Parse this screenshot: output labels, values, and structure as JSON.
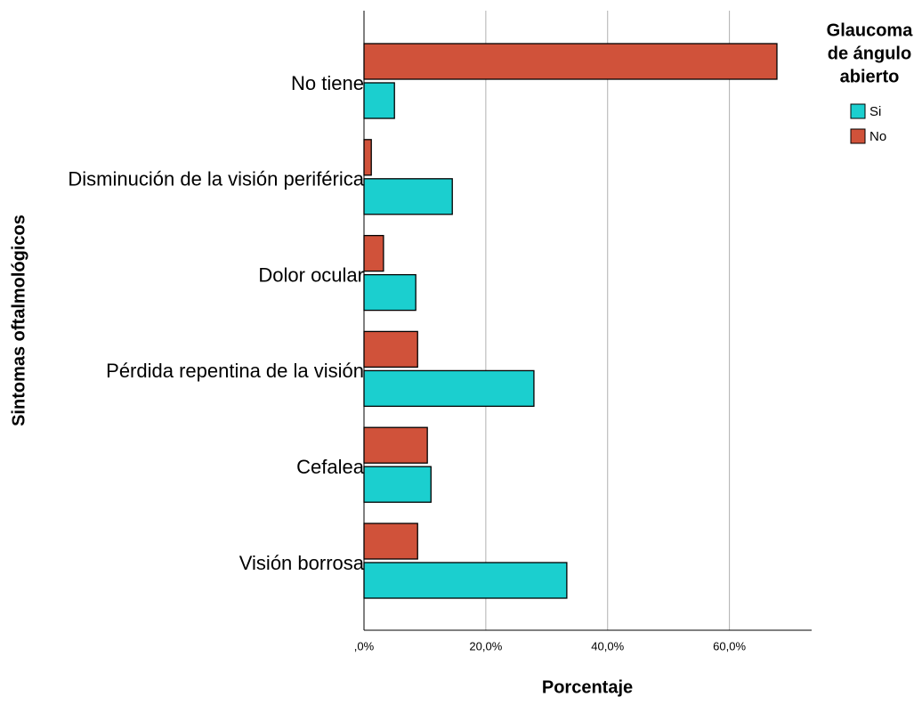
{
  "chart_data": {
    "type": "bar",
    "orientation": "horizontal",
    "x_title": "Porcentaje",
    "y_title": "Sintomas oftalmológicos",
    "categories": [
      "No tiene",
      "Disminución de la visión periférica",
      "Dolor ocular",
      "Pérdida repentina de la visión",
      "Cefalea",
      "Visión borrosa"
    ],
    "series": [
      {
        "name": "Si",
        "color": "#1bcfcf",
        "values": [
          5.0,
          14.5,
          8.5,
          27.9,
          11.0,
          33.3
        ]
      },
      {
        "name": "No",
        "color": "#d0523a",
        "values": [
          67.8,
          1.2,
          3.2,
          8.8,
          10.4,
          8.8
        ]
      }
    ],
    "xlim": [
      0,
      73.5
    ],
    "xticks": [
      {
        "value": 0,
        "label": ",0%"
      },
      {
        "value": 20,
        "label": "20,0%"
      },
      {
        "value": 40,
        "label": "40,0%"
      },
      {
        "value": 60,
        "label": "60,0%"
      }
    ],
    "grid": true,
    "legend_title_lines": [
      "Glaucoma",
      "de ángulo",
      "abierto"
    ],
    "legend_position": "right"
  }
}
